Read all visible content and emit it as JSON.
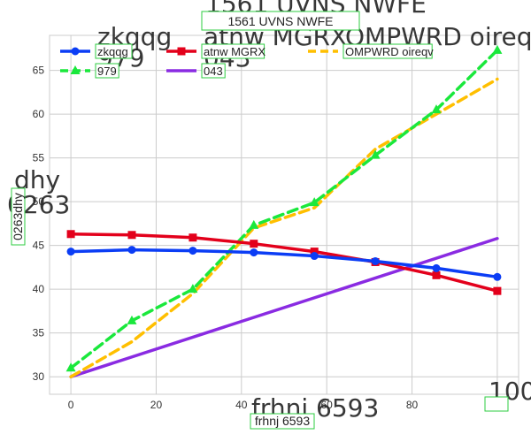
{
  "chart_data": {
    "type": "line",
    "title": "1561 UVNS NWFE",
    "xlabel": "frhnj 6593",
    "ylabel": "0263dhy",
    "x_tick_labels": [
      "0",
      "20",
      "40",
      "60",
      "80",
      "100"
    ],
    "y_tick_labels": [
      "30",
      "35",
      "40",
      "45",
      "50",
      "55",
      "60",
      "65"
    ],
    "xlim": [
      -5,
      105
    ],
    "ylim": [
      28,
      69
    ],
    "grid": true,
    "legend_position": "top-left",
    "series": [
      {
        "name": "zkqqg",
        "color": "#0b3df5",
        "dash": "solid",
        "marker": "circle",
        "x": [
          0,
          14.3,
          28.6,
          42.9,
          57.1,
          71.4,
          85.7,
          100
        ],
        "y": [
          44.3,
          44.5,
          44.4,
          44.2,
          43.8,
          43.2,
          42.4,
          41.4
        ]
      },
      {
        "name": "atnw MGRX",
        "color": "#e3001b",
        "dash": "solid",
        "marker": "square",
        "x": [
          0,
          14.3,
          28.6,
          42.9,
          57.1,
          71.4,
          85.7,
          100
        ],
        "y": [
          46.3,
          46.2,
          45.9,
          45.2,
          44.3,
          43.1,
          41.6,
          39.8
        ]
      },
      {
        "name": "OMPWRD oireqv",
        "color": "#ffbf00",
        "dash": "dashed",
        "marker": "none",
        "x": [
          0,
          14.3,
          28.6,
          42.9,
          57.1,
          71.4,
          85.7,
          100
        ],
        "y": [
          30.0,
          34.0,
          39.5,
          47.0,
          49.3,
          56.0,
          60.0,
          64.0
        ]
      },
      {
        "name": "979",
        "color": "#1ae83c",
        "dash": "dashed",
        "marker": "triangle",
        "x": [
          0,
          14.3,
          28.6,
          42.9,
          57.1,
          71.4,
          85.7,
          100
        ],
        "y": [
          31.0,
          36.4,
          40.0,
          47.3,
          49.9,
          55.3,
          60.5,
          67.3
        ]
      },
      {
        "name": "043",
        "color": "#8a2be2",
        "dash": "solid",
        "marker": "none",
        "x": [
          0,
          100
        ],
        "y": [
          30.0,
          45.8
        ]
      }
    ],
    "legend_order": [
      "zkqqg",
      "atnw MGRX",
      "OMPWRD oireqv",
      "979",
      "043"
    ]
  }
}
